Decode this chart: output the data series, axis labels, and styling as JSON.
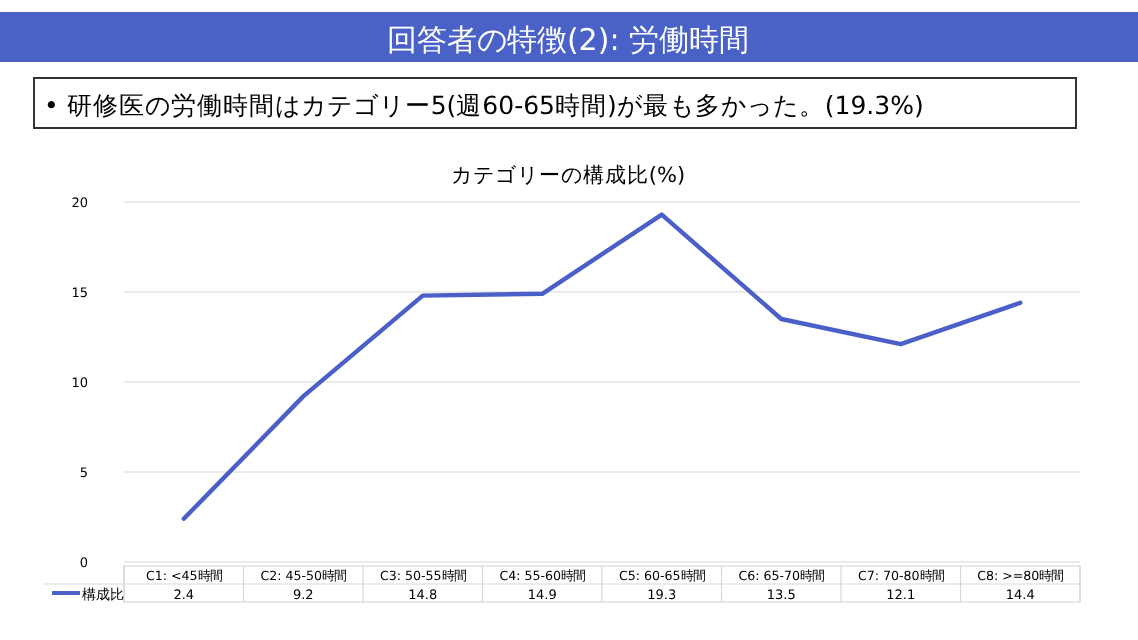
{
  "chart_data": {
    "type": "line",
    "title": "回答者の特徴(2): 労働時間",
    "subtitle": "カテゴリーの構成比(%)",
    "annotations": [
      "• 研修医の労働時間はカテゴリー5(週60-65時間)が最も多かった。(19.3%)"
    ],
    "categories": [
      "C1: <45時間",
      "C2: 45-50時間",
      "C3: 50-55時間",
      "C4: 55-60時間",
      "C5: 60-65時間",
      "C6: 65-70時間",
      "C7: 70-80時間",
      "C8: >=80時間"
    ],
    "series": [
      {
        "name": "構成比",
        "color": "#4a5fc8",
        "values": [
          2.4,
          9.2,
          14.8,
          14.9,
          19.3,
          13.5,
          12.1,
          14.4
        ]
      }
    ],
    "ylim": [
      0,
      20
    ],
    "yticks": [
      0,
      5,
      10,
      15,
      20
    ],
    "grid": "y",
    "legend": "bottom left",
    "data_labels": true,
    "marker": "none",
    "line_style": "solid"
  }
}
